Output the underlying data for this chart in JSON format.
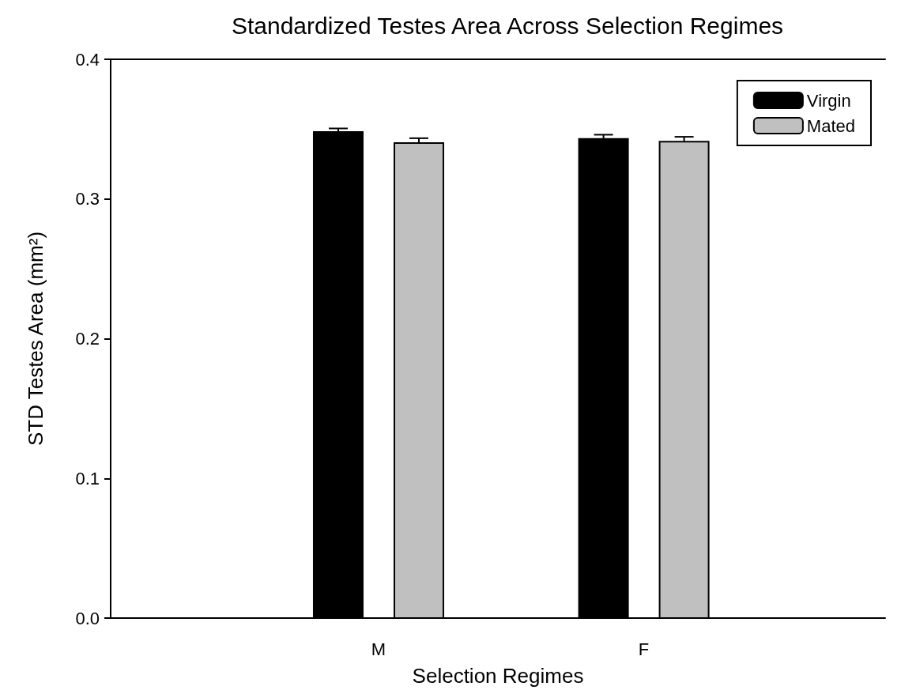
{
  "chart_data": {
    "type": "bar",
    "title": "Standardized Testes Area Across Selection Regimes",
    "xlabel": "Selection Regimes",
    "ylabel": "STD Testes Area (mm²)",
    "categories": [
      "M",
      "F"
    ],
    "series": [
      {
        "name": "Virgin",
        "color": "#000000",
        "values": [
          0.348,
          0.343
        ],
        "errors": [
          [
            0.348,
            0.3505
          ],
          [
            0.343,
            0.346
          ]
        ]
      },
      {
        "name": "Mated",
        "color": "#c0c0c0",
        "values": [
          0.34,
          0.341
        ],
        "errors": [
          [
            0.34,
            0.3435
          ],
          [
            0.341,
            0.3445
          ]
        ]
      }
    ],
    "ylim": [
      0,
      0.4
    ],
    "yticks": [
      {
        "value": 0,
        "label": "0.0"
      },
      0.1,
      0.2,
      0.3,
      0.4
    ],
    "legend": "top right",
    "grid": false
  }
}
